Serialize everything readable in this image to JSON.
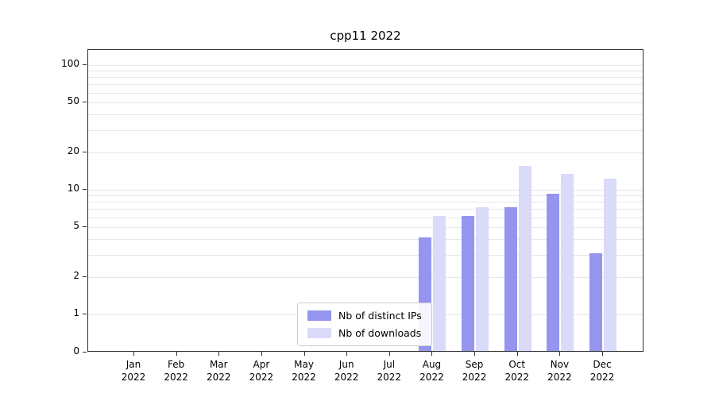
{
  "title": "cpp11 2022",
  "chart_data": {
    "type": "bar",
    "title": "cpp11 2022",
    "categories": [
      "Jan",
      "Feb",
      "Mar",
      "Apr",
      "May",
      "Jun",
      "Jul",
      "Aug",
      "Sep",
      "Oct",
      "Nov",
      "Dec"
    ],
    "year_label": "2022",
    "series": [
      {
        "name": "Nb of distinct IPs",
        "color": "#9595ef",
        "values": [
          0,
          0,
          0,
          0,
          0,
          0,
          0,
          4,
          6,
          7,
          9,
          3
        ]
      },
      {
        "name": "Nb of downloads",
        "color": "#dadaf9",
        "values": [
          0,
          0,
          0,
          0,
          0,
          0,
          0,
          6,
          7,
          15,
          13,
          12
        ]
      }
    ],
    "yscale": "symlog",
    "yticks": [
      0,
      1,
      2,
      5,
      10,
      20,
      50,
      100
    ],
    "minor_gridlines": [
      3,
      4,
      6,
      7,
      8,
      9,
      30,
      40,
      60,
      70,
      80,
      90
    ],
    "ylim": [
      0,
      130
    ],
    "xlabel": "",
    "ylabel": "",
    "grid": true,
    "legend_position": "inside-bottom-center"
  }
}
